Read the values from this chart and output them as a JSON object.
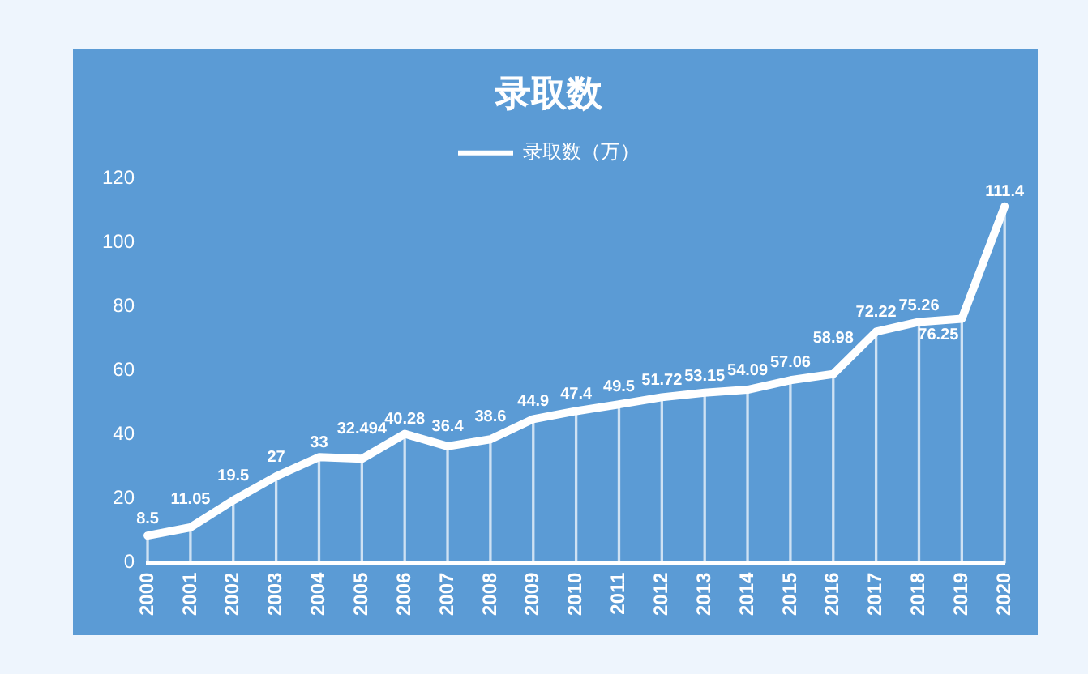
{
  "chart_data": {
    "type": "line",
    "title": "录取数",
    "categories": [
      "2000",
      "2001",
      "2002",
      "2003",
      "2004",
      "2005",
      "2006",
      "2007",
      "2008",
      "2009",
      "2010",
      "2011",
      "2012",
      "2013",
      "2014",
      "2015",
      "2016",
      "2017",
      "2018",
      "2019",
      "2020"
    ],
    "series": [
      {
        "name": "录取数（万）",
        "color": "#ffffff",
        "values": [
          8.5,
          11.05,
          19.5,
          27,
          33,
          32.494,
          40.28,
          36.4,
          38.6,
          44.9,
          47.4,
          49.5,
          51.72,
          53.15,
          54.09,
          57.06,
          58.98,
          72.22,
          75.26,
          76.25,
          111.4
        ],
        "value_labels": [
          "8.5",
          "11.05",
          "19.5",
          "27",
          "33",
          "32.494",
          "40.28",
          "36.4",
          "38.6",
          "44.9",
          "47.4",
          "49.5",
          "51.72",
          "53.15",
          "54.09",
          "57.06",
          "58.98",
          "72.22",
          "75.26",
          "76.25",
          "111.4"
        ]
      },
      {
        "type": "bar",
        "color": "#ffffff",
        "values": [
          8.5,
          11.05,
          19.5,
          27,
          33,
          32.494,
          40.28,
          36.4,
          38.6,
          44.9,
          47.4,
          49.5,
          51.72,
          53.15,
          54.09,
          57.06,
          58.98,
          72.22,
          75.26,
          76.25,
          111.4
        ]
      }
    ],
    "ylim": [
      0,
      120
    ],
    "yticks": [
      0,
      20,
      40,
      60,
      80,
      100,
      120
    ],
    "grid": false,
    "legend": "top",
    "marker": "none",
    "line_style": "solid"
  }
}
